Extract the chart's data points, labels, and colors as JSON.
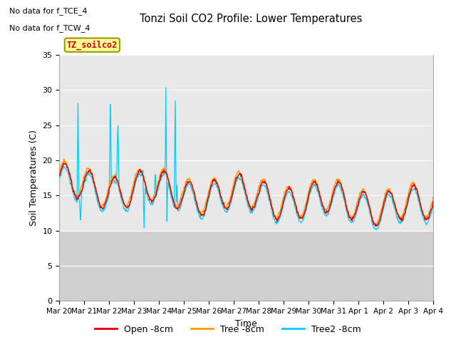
{
  "title": "Tonzi Soil CO2 Profile: Lower Temperatures",
  "xlabel": "Time",
  "ylabel": "Soil Temperatures (C)",
  "ylim": [
    0,
    35
  ],
  "yticks": [
    0,
    5,
    10,
    15,
    20,
    25,
    30,
    35
  ],
  "annotations": [
    "No data for f_TCE_4",
    "No data for f_TCW_4"
  ],
  "legend_box_label": "TZ_soilco2",
  "legend_box_color": "#ffff99",
  "legend_box_edgecolor": "#999900",
  "legend_box_textcolor": "#cc0000",
  "colors": {
    "open": "#dd0000",
    "tree": "#ff9900",
    "tree2": "#00ccff"
  },
  "line_labels": [
    "Open -8cm",
    "Tree -8cm",
    "Tree2 -8cm"
  ],
  "x_tick_labels": [
    "Mar 20",
    "Mar 21",
    "Mar 22",
    "Mar 23",
    "Mar 24",
    "Mar 25",
    "Mar 26",
    "Mar 27",
    "Mar 28",
    "Mar 29",
    "Mar 30",
    "Mar 31",
    "Apr 1",
    "Apr 2",
    "Apr 3",
    "Apr 4"
  ],
  "shading_band1_color": "#e8e8e8",
  "shading_band2_color": "#d0d0d0",
  "n_days": 15,
  "n_points": 720
}
